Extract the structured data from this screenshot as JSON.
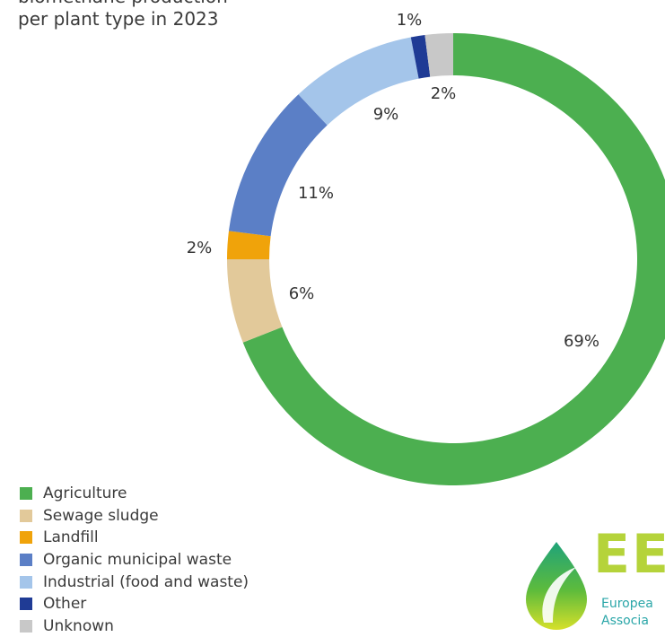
{
  "chart_data": {
    "type": "pie",
    "donut": true,
    "title_lines": [
      "biomethane production",
      "per plant type in 2023"
    ],
    "categories": [
      "Agriculture",
      "Sewage sludge",
      "Landfill",
      "Organic municipal waste",
      "Industrial (food and waste)",
      "Other",
      "Unknown"
    ],
    "values": [
      69,
      6,
      2,
      11,
      9,
      1,
      2
    ],
    "data_labels": [
      "69%",
      "6%",
      "2%",
      "11%",
      "9%",
      "1%",
      "2%"
    ],
    "colors": [
      "#4caf50",
      "#e2c99a",
      "#f0a30a",
      "#5b7fc6",
      "#a4c5ea",
      "#1f3b95",
      "#c8c8c8"
    ],
    "legend_position": "bottom-left"
  },
  "logo": {
    "letters": "EE",
    "line1": "Europea",
    "line2": "Associa"
  }
}
